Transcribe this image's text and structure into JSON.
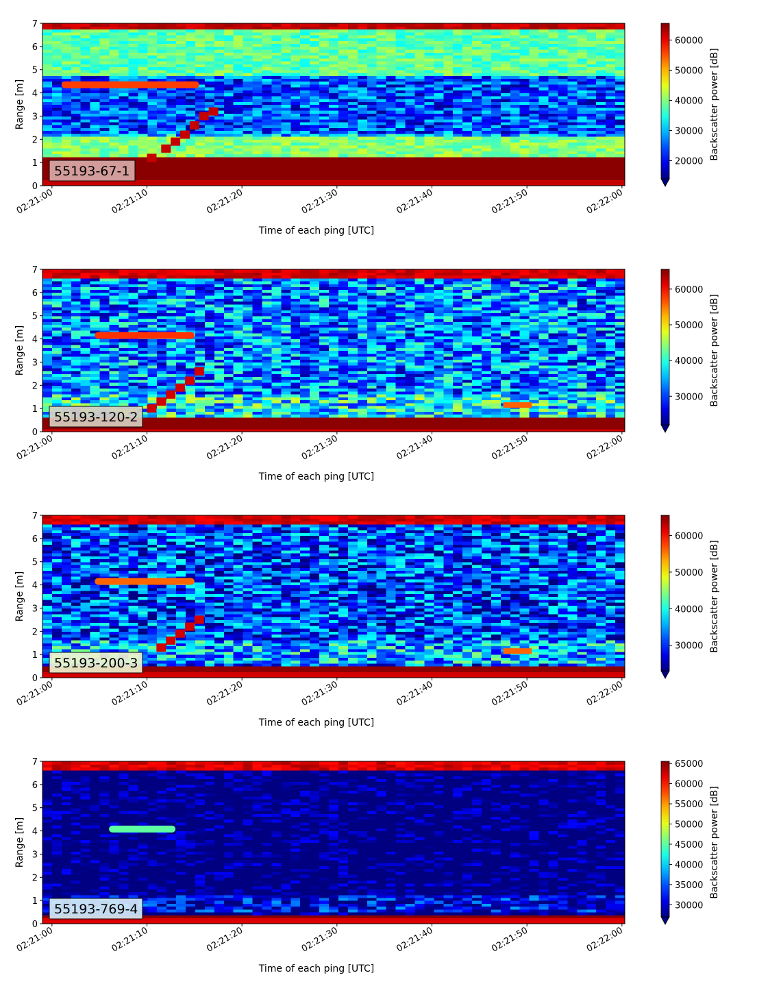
{
  "chart_data": [
    {
      "type": "heatmap",
      "label_box": "55193-67-1",
      "xlabel": "Time of each ping [UTC]",
      "ylabel": "Range [m]",
      "x_ticks": [
        "02:21:00",
        "02:21:10",
        "02:21:20",
        "02:21:30",
        "02:21:40",
        "02:21:50",
        "02:22:00"
      ],
      "y_ticks": [
        0,
        1,
        2,
        3,
        4,
        5,
        6,
        7
      ],
      "xlim_seconds": [
        -1,
        60.3
      ],
      "ylim": [
        0,
        7
      ],
      "colorbar": {
        "label": "Backscatter power [dB]",
        "range": [
          14000,
          65535
        ],
        "ticks": [
          20000,
          30000,
          40000,
          50000,
          60000
        ],
        "extend": "min",
        "colormap": "jet"
      },
      "features": {
        "bottom_band": {
          "from_m": 0.2,
          "to_m": 1.2,
          "level": 65000
        },
        "top_band": {
          "from_m": 6.75,
          "to_m": 7.0,
          "level": 64000
        },
        "upper_layer": {
          "from_m": 4.8,
          "to_m": 6.7,
          "level": 38000
        },
        "mid_layer": {
          "from_m": 1.3,
          "to_m": 2.1,
          "level": 40000
        },
        "target_track": [
          [
            10.5,
            1.2
          ],
          [
            12,
            1.6
          ],
          [
            13,
            1.9
          ],
          [
            14,
            2.2
          ],
          [
            15,
            2.6
          ],
          [
            16,
            3.0
          ],
          [
            17,
            3.2
          ]
        ],
        "horizontal_target": {
          "start_s": 1,
          "end_s": 15.5,
          "range_m": 4.35,
          "level": 56000
        }
      }
    },
    {
      "type": "heatmap",
      "label_box": "55193-120-2",
      "xlabel": "Time of each ping [UTC]",
      "ylabel": "Range [m]",
      "x_ticks": [
        "02:21:00",
        "02:21:10",
        "02:21:20",
        "02:21:30",
        "02:21:40",
        "02:21:50",
        "02:22:00"
      ],
      "y_ticks": [
        0,
        1,
        2,
        3,
        4,
        5,
        6,
        7
      ],
      "xlim_seconds": [
        -1,
        60.3
      ],
      "ylim": [
        0,
        7
      ],
      "colorbar": {
        "label": "Backscatter power [dB]",
        "range": [
          22000,
          65535
        ],
        "ticks": [
          30000,
          40000,
          50000,
          60000
        ],
        "extend": "min",
        "colormap": "jet"
      },
      "features": {
        "bottom_band": {
          "from_m": 0.1,
          "to_m": 0.6,
          "level": 65000
        },
        "top_band": {
          "from_m": 6.65,
          "to_m": 7.0,
          "level": 64000
        },
        "target_track": [
          [
            10.5,
            1.0
          ],
          [
            11.5,
            1.3
          ],
          [
            12.5,
            1.6
          ],
          [
            13.5,
            1.9
          ],
          [
            14.5,
            2.2
          ],
          [
            15.5,
            2.6
          ]
        ],
        "horizontal_target": {
          "start_s": 4.5,
          "end_s": 15,
          "range_m": 4.15,
          "level": 58000
        },
        "late_target": {
          "start_s": 47.5,
          "end_s": 50.5,
          "range_m": 1.15,
          "level": 56000
        }
      }
    },
    {
      "type": "heatmap",
      "label_box": "55193-200-3",
      "xlabel": "Time of each ping [UTC]",
      "ylabel": "Range [m]",
      "x_ticks": [
        "02:21:00",
        "02:21:10",
        "02:21:20",
        "02:21:30",
        "02:21:40",
        "02:21:50",
        "02:22:00"
      ],
      "y_ticks": [
        0,
        1,
        2,
        3,
        4,
        5,
        6,
        7
      ],
      "xlim_seconds": [
        -1,
        60.3
      ],
      "ylim": [
        0,
        7
      ],
      "colorbar": {
        "label": "Backscatter power [dB]",
        "range": [
          23000,
          65535
        ],
        "ticks": [
          30000,
          40000,
          50000,
          60000
        ],
        "extend": "min",
        "colormap": "jet"
      },
      "features": {
        "bottom_band": {
          "from_m": 0.2,
          "to_m": 0.5,
          "level": 65000
        },
        "top_band": {
          "from_m": 6.65,
          "to_m": 7.0,
          "level": 64000
        },
        "target_track": [
          [
            11.5,
            1.3
          ],
          [
            12.5,
            1.6
          ],
          [
            13.5,
            1.9
          ],
          [
            14.5,
            2.2
          ],
          [
            15.5,
            2.5
          ]
        ],
        "horizontal_target": {
          "start_s": 4.5,
          "end_s": 15,
          "range_m": 4.15,
          "level": 56000
        },
        "late_target": {
          "start_s": 47.5,
          "end_s": 50.5,
          "range_m": 1.15,
          "level": 56000
        }
      }
    },
    {
      "type": "heatmap",
      "label_box": "55193-769-4",
      "xlabel": "Time of each ping [UTC]",
      "ylabel": "Range [m]",
      "x_ticks": [
        "02:21:00",
        "02:21:10",
        "02:21:20",
        "02:21:30",
        "02:21:40",
        "02:21:50",
        "02:22:00"
      ],
      "y_ticks": [
        0,
        1,
        2,
        3,
        4,
        5,
        6,
        7
      ],
      "xlim_seconds": [
        -1,
        60.3
      ],
      "ylim": [
        0,
        7
      ],
      "colorbar": {
        "label": "Backscatter power [dB]",
        "range": [
          27000,
          65535
        ],
        "ticks": [
          30000,
          35000,
          40000,
          45000,
          50000,
          55000,
          60000,
          65000
        ],
        "extend": "min",
        "colormap": "jet"
      },
      "features": {
        "bottom_band": {
          "from_m": 0.2,
          "to_m": 0.4,
          "level": 65000
        },
        "top_band": {
          "from_m": 6.6,
          "to_m": 6.95,
          "level": 64000
        },
        "horizontal_target": {
          "start_s": 6,
          "end_s": 13,
          "range_m": 4.08,
          "level": 45000
        }
      }
    }
  ]
}
